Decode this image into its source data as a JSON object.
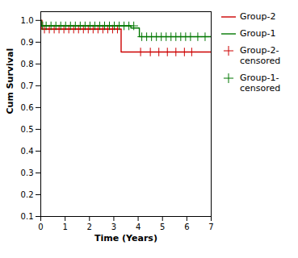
{
  "chart_data": {
    "type": "step",
    "xlabel": "Time (Years)",
    "ylabel": "Cum Survival",
    "series": [
      {
        "name": "Group-2",
        "type": "step",
        "color": "#cc0000",
        "x": [
          0,
          0.05,
          3.3,
          3.3,
          7.0
        ],
        "values": [
          1.0,
          0.96,
          0.96,
          0.855,
          0.855
        ]
      },
      {
        "name": "Group-1",
        "type": "step",
        "color": "#007700",
        "x": [
          0,
          0.02,
          3.7,
          3.7,
          4.05,
          4.05,
          7.0
        ],
        "values": [
          1.0,
          0.975,
          0.975,
          0.965,
          0.965,
          0.925,
          0.925
        ]
      },
      {
        "name": "Group-2-\ncensored",
        "type": "scatter",
        "marker": "+",
        "color": "#cc0000",
        "x": [
          0.15,
          0.35,
          0.55,
          0.75,
          0.95,
          1.15,
          1.35,
          1.55,
          1.75,
          1.95,
          2.15,
          2.35,
          2.55,
          2.75,
          2.95,
          3.15,
          4.1,
          4.5,
          4.85,
          5.2,
          5.55,
          5.9,
          6.2
        ],
        "values": [
          0.96,
          0.96,
          0.96,
          0.96,
          0.96,
          0.96,
          0.96,
          0.96,
          0.96,
          0.96,
          0.96,
          0.96,
          0.96,
          0.96,
          0.96,
          0.96,
          0.855,
          0.855,
          0.855,
          0.855,
          0.855,
          0.855,
          0.855
        ]
      },
      {
        "name": "Group-1-\ncensored",
        "type": "scatter",
        "marker": "+",
        "color": "#007700",
        "x": [
          0.08,
          0.22,
          0.42,
          0.62,
          0.82,
          1.02,
          1.22,
          1.42,
          1.62,
          1.82,
          2.02,
          2.22,
          2.42,
          2.62,
          2.82,
          3.02,
          3.22,
          3.42,
          3.62,
          3.82,
          4.15,
          4.35,
          4.55,
          4.75,
          4.95,
          5.15,
          5.35,
          5.55,
          5.75,
          5.95,
          6.15,
          6.45,
          6.75
        ],
        "values": [
          0.975,
          0.975,
          0.975,
          0.975,
          0.975,
          0.975,
          0.975,
          0.975,
          0.975,
          0.975,
          0.975,
          0.975,
          0.975,
          0.975,
          0.975,
          0.975,
          0.975,
          0.975,
          0.975,
          0.975,
          0.925,
          0.925,
          0.925,
          0.925,
          0.925,
          0.925,
          0.925,
          0.925,
          0.925,
          0.925,
          0.925,
          0.925,
          0.925
        ]
      }
    ],
    "xlim": [
      0,
      7
    ],
    "ylim": [
      0.1,
      1.04
    ],
    "xticks": [
      0,
      1,
      2,
      3,
      4,
      5,
      6,
      7
    ],
    "yticks": [
      0.1,
      0.2,
      0.3,
      0.4,
      0.5,
      0.6,
      0.7,
      0.8,
      0.9,
      {
        "value": 1.0,
        "label": "1.0"
      }
    ],
    "grid": false,
    "legend": "right"
  }
}
